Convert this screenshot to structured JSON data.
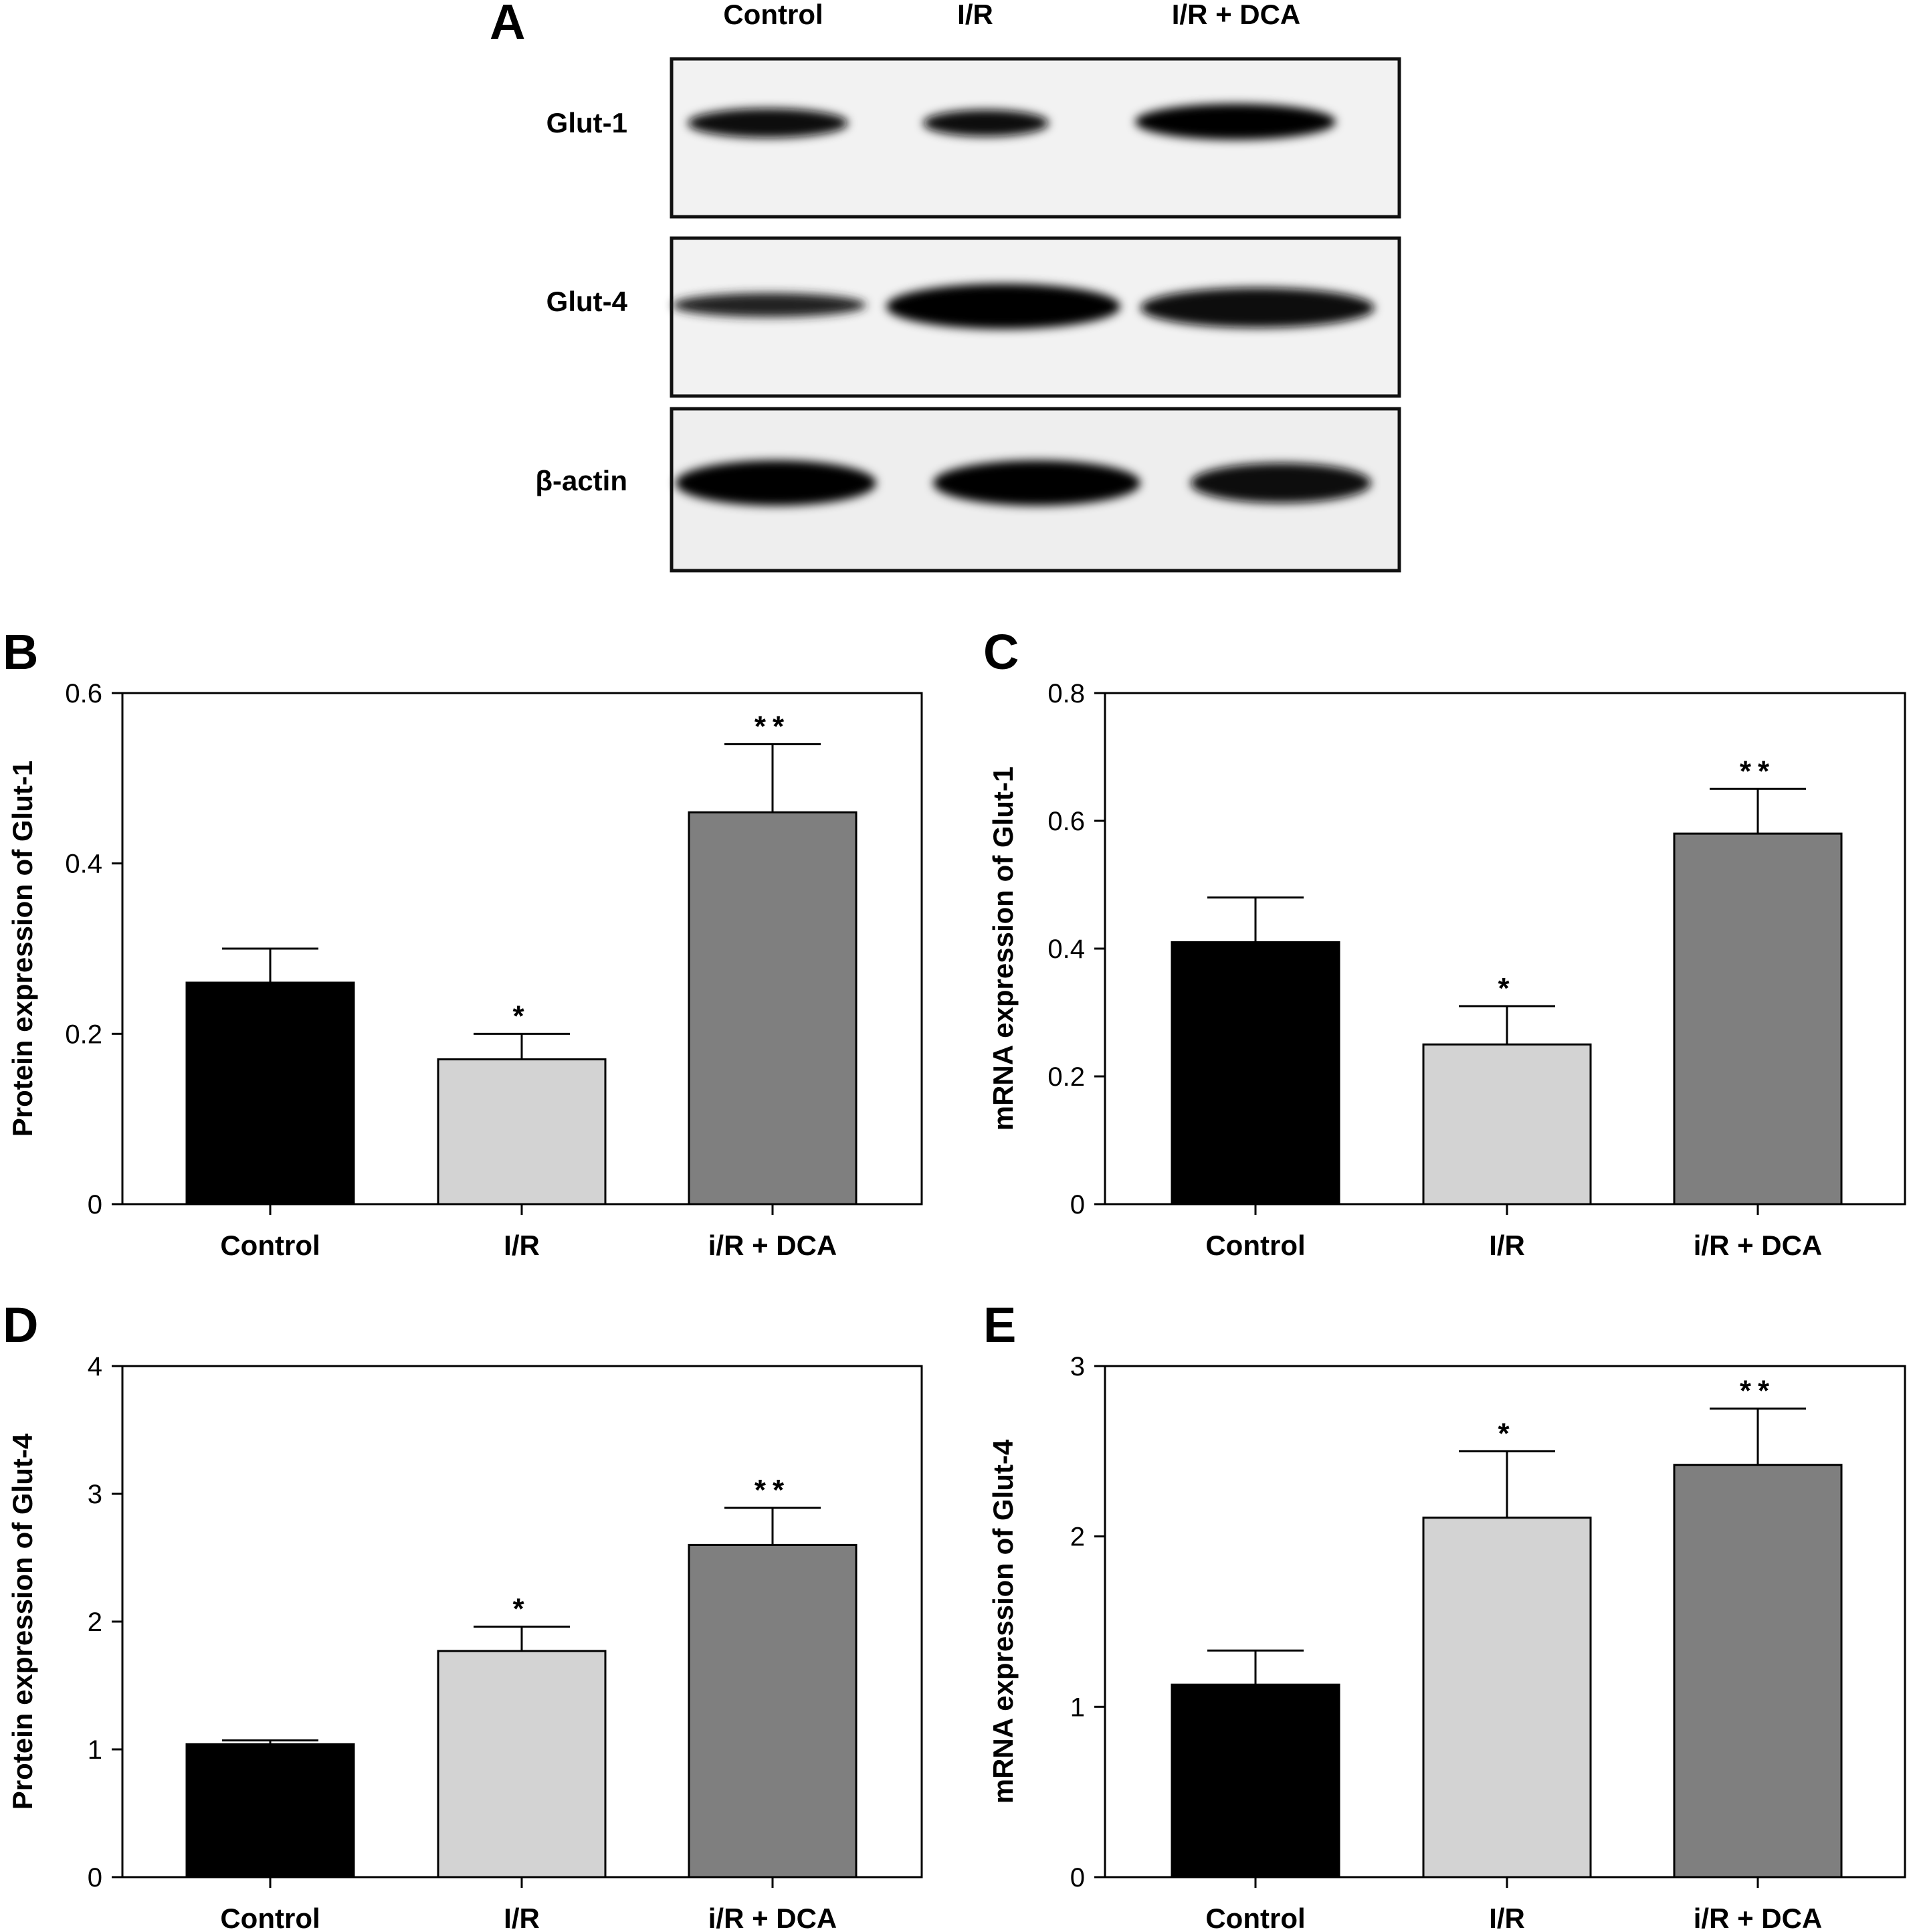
{
  "panel_a": {
    "letter": "A",
    "lanes": [
      "Control",
      "I/R",
      "I/R + DCA"
    ],
    "rows": [
      {
        "label": "Glut-1",
        "band_intensity": [
          0.95,
          0.8,
          1.0
        ]
      },
      {
        "label": "Glut-4",
        "band_intensity": [
          0.75,
          1.0,
          0.95
        ]
      },
      {
        "label": "β-actin",
        "band_intensity": [
          1.0,
          1.0,
          0.95
        ]
      }
    ]
  },
  "colors": {
    "control": "#000000",
    "ir": "#d3d3d3",
    "ir_dca": "#7f7f7f"
  },
  "chart_data": [
    {
      "panel": "B",
      "type": "bar",
      "categories": [
        "Control",
        "I/R",
        "i/R + DCA"
      ],
      "values": [
        0.26,
        0.17,
        0.46
      ],
      "errors": [
        0.04,
        0.03,
        0.08
      ],
      "significance": [
        "",
        "*",
        "**"
      ],
      "ylabel": "Protein expression of Glut-1",
      "ylim": [
        0,
        0.6
      ],
      "yticks": [
        "0",
        "0.2",
        "0.4",
        "0.6"
      ]
    },
    {
      "panel": "C",
      "type": "bar",
      "categories": [
        "Control",
        "I/R",
        "i/R + DCA"
      ],
      "values": [
        0.41,
        0.25,
        0.58
      ],
      "errors": [
        0.07,
        0.06,
        0.07
      ],
      "significance": [
        "",
        "*",
        "**"
      ],
      "ylabel": "mRNA expression of Glut-1",
      "ylim": [
        0,
        0.8
      ],
      "yticks": [
        "0",
        "0.2",
        "0.4",
        "0.6",
        "0.8"
      ]
    },
    {
      "panel": "D",
      "type": "bar",
      "categories": [
        "Control",
        "I/R",
        "i/R + DCA"
      ],
      "values": [
        1.04,
        1.77,
        2.6
      ],
      "errors": [
        0.03,
        0.19,
        0.29
      ],
      "significance": [
        "",
        "*",
        "**"
      ],
      "ylabel": "Protein expression of Glut-4",
      "ylim": [
        0,
        4
      ],
      "yticks": [
        "0",
        "1",
        "2",
        "3",
        "4"
      ]
    },
    {
      "panel": "E",
      "type": "bar",
      "categories": [
        "Control",
        "I/R",
        "i/R + DCA"
      ],
      "values": [
        1.13,
        2.11,
        2.42
      ],
      "errors": [
        0.2,
        0.39,
        0.33
      ],
      "significance": [
        "",
        "*",
        "**"
      ],
      "ylabel": "mRNA expression of Glut-4",
      "ylim": [
        0,
        3
      ],
      "yticks": [
        "0",
        "1",
        "2",
        "3"
      ]
    }
  ]
}
